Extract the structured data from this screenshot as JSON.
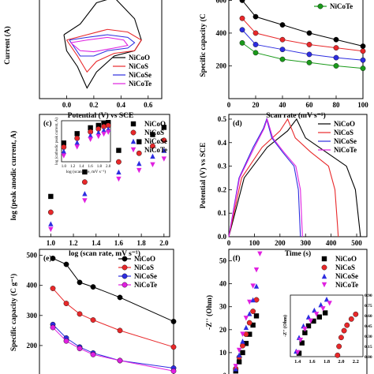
{
  "colors": {
    "NiCoO": "#000000",
    "NiCoS": "#e8282a",
    "NiCoSe": "#2d2de0",
    "NiCoTe": "#e020e0",
    "NiCoTe_b": "#1a9a1a"
  },
  "chart_data": [
    {
      "id": "a",
      "type": "line",
      "panel_label": "",
      "xlabel": "Potential (V) vs SCE",
      "ylabel": "Current (A)",
      "xlim": [
        -0.2,
        0.7
      ],
      "ylim": [
        -0.1,
        0.1
      ],
      "x_ticks": [
        "0.0",
        "0.2",
        "0.4",
        "0.6"
      ],
      "legend": [
        "NiCoO",
        "NiCoS",
        "NiCoSe",
        "NiCoTe"
      ],
      "series": [
        {
          "name": "NiCoO",
          "loop": [
            [
              -0.02,
              0.02
            ],
            [
              0.1,
              0.04
            ],
            [
              0.22,
              0.08
            ],
            [
              0.35,
              0.09
            ],
            [
              0.5,
              0.05
            ],
            [
              0.55,
              0.01
            ],
            [
              0.5,
              -0.01
            ],
            [
              0.35,
              -0.02
            ],
            [
              0.22,
              -0.05
            ],
            [
              0.15,
              -0.08
            ],
            [
              0.08,
              -0.04
            ],
            [
              0.0,
              -0.01
            ],
            [
              -0.02,
              0.02
            ]
          ]
        },
        {
          "name": "NiCoS",
          "loop": [
            [
              0.0,
              0.01
            ],
            [
              0.15,
              0.02
            ],
            [
              0.3,
              0.03
            ],
            [
              0.45,
              0.025
            ],
            [
              0.55,
              0.01
            ],
            [
              0.5,
              -0.01
            ],
            [
              0.35,
              -0.015
            ],
            [
              0.22,
              -0.03
            ],
            [
              0.15,
              -0.05
            ],
            [
              0.08,
              -0.02
            ],
            [
              0.0,
              0.01
            ]
          ]
        },
        {
          "name": "NiCoSe",
          "loop": [
            [
              0.02,
              0.01
            ],
            [
              0.15,
              0.015
            ],
            [
              0.3,
              0.02
            ],
            [
              0.45,
              0.015
            ],
            [
              0.5,
              0.005
            ],
            [
              0.45,
              -0.005
            ],
            [
              0.3,
              -0.01
            ],
            [
              0.2,
              -0.02
            ],
            [
              0.1,
              -0.02
            ],
            [
              0.02,
              0.01
            ]
          ]
        },
        {
          "name": "NiCoTe",
          "loop": [
            [
              0.03,
              0.005
            ],
            [
              0.15,
              0.01
            ],
            [
              0.3,
              0.015
            ],
            [
              0.42,
              0.01
            ],
            [
              0.45,
              0.0
            ],
            [
              0.35,
              -0.005
            ],
            [
              0.2,
              -0.012
            ],
            [
              0.1,
              -0.01
            ],
            [
              0.03,
              0.005
            ]
          ]
        }
      ]
    },
    {
      "id": "b",
      "type": "line",
      "panel_label": "",
      "xlabel": "Scan rate (mV s⁻¹)",
      "ylabel": "Specific capacity (C",
      "xlim": [
        0,
        100
      ],
      "ylim": [
        0,
        650
      ],
      "x_ticks": [
        "0",
        "20",
        "40",
        "60",
        "80",
        "100"
      ],
      "y_ticks": [
        "200",
        "400",
        "600"
      ],
      "legend": [
        "NiCoTe"
      ],
      "x": [
        10,
        20,
        40,
        60,
        80,
        100
      ],
      "series": [
        {
          "name": "",
          "color_key": "NiCoO",
          "values": [
            600,
            500,
            450,
            400,
            360,
            320
          ]
        },
        {
          "name": "",
          "color_key": "NiCoS",
          "values": [
            490,
            400,
            360,
            330,
            310,
            290
          ]
        },
        {
          "name": "",
          "color_key": "NiCoSe",
          "values": [
            420,
            330,
            300,
            270,
            250,
            235
          ]
        },
        {
          "name": "NiCoTe",
          "color_key": "NiCoTe_b",
          "values": [
            340,
            280,
            240,
            220,
            200,
            185
          ]
        }
      ]
    },
    {
      "id": "c",
      "type": "scatter",
      "panel_label": "(c)",
      "xlabel": "log (scan rate, mV s⁻¹)",
      "ylabel": "log (peak anodic current, A)",
      "xlim": [
        0.9,
        2.05
      ],
      "ylim": [
        -1.6,
        -0.75
      ],
      "x_ticks": [
        "1.0",
        "1.2",
        "1.4",
        "1.6",
        "1.8",
        "2.0"
      ],
      "legend": [
        "NiCoO",
        "NiCoS",
        "NiCoSe",
        "NiCoTe"
      ],
      "x": [
        1.0,
        1.3,
        1.6,
        1.78,
        1.9,
        2.0
      ],
      "series": [
        {
          "name": "NiCoO",
          "values": [
            -1.32,
            -1.15,
            -1.0,
            -0.94,
            -0.89,
            -0.84
          ]
        },
        {
          "name": "NiCoS",
          "values": [
            -1.43,
            -1.22,
            -1.08,
            -1.02,
            -0.97,
            -0.93
          ]
        },
        {
          "name": "NiCoSe",
          "values": [
            -1.51,
            -1.3,
            -1.15,
            -1.09,
            -1.04,
            -1.0
          ]
        },
        {
          "name": "NiCoTe",
          "values": [
            -1.55,
            -1.35,
            -1.2,
            -1.14,
            -1.1,
            -1.06
          ]
        }
      ],
      "inset": {
        "xlabel": "log (scan rate, mV s⁻¹)",
        "ylabel": "log (cathodic peak current, A)",
        "x_ticks": [
          "1.0",
          "1.2",
          "1.4",
          "1.6",
          "1.8",
          "2.0"
        ],
        "xlim": [
          0.95,
          2.05
        ],
        "ylim": [
          -1.6,
          -0.9
        ],
        "x": [
          1.0,
          1.3,
          1.6,
          1.78,
          1.9,
          2.0
        ],
        "series": [
          {
            "name": "NiCoO",
            "values": [
              -1.28,
              -1.12,
              -1.02,
              -0.98,
              -0.95,
              -0.93
            ]
          },
          {
            "name": "NiCoS",
            "values": [
              -1.35,
              -1.2,
              -1.09,
              -1.04,
              -1.0,
              -0.98
            ]
          },
          {
            "name": "NiCoSe",
            "values": [
              -1.42,
              -1.27,
              -1.15,
              -1.1,
              -1.06,
              -1.04
            ]
          },
          {
            "name": "NiCoTe",
            "values": [
              -1.5,
              -1.35,
              -1.22,
              -1.17,
              -1.13,
              -1.1
            ]
          }
        ]
      }
    },
    {
      "id": "d",
      "type": "line",
      "panel_label": "(d)",
      "xlabel": "Time (s)",
      "ylabel": "Potential (V) vs SCE",
      "xlim": [
        0,
        540
      ],
      "ylim": [
        0,
        0.52
      ],
      "x_ticks": [
        "0",
        "100",
        "200",
        "300",
        "400",
        "500"
      ],
      "y_ticks": [
        "0.0",
        "0.1",
        "0.2",
        "0.3",
        "0.4",
        "0.5"
      ],
      "legend": [
        "NiCoO",
        "NiCoS",
        "NiCoSe",
        "NiCoTe"
      ],
      "series": [
        {
          "name": "NiCoO",
          "points": [
            [
              0,
              0
            ],
            [
              60,
              0.25
            ],
            [
              150,
              0.38
            ],
            [
              230,
              0.45
            ],
            [
              265,
              0.5
            ],
            [
              300,
              0.42
            ],
            [
              380,
              0.36
            ],
            [
              460,
              0.3
            ],
            [
              495,
              0.2
            ],
            [
              510,
              0.05
            ],
            [
              515,
              0
            ]
          ]
        },
        {
          "name": "NiCoS",
          "points": [
            [
              0,
              0
            ],
            [
              50,
              0.25
            ],
            [
              130,
              0.38
            ],
            [
              200,
              0.45
            ],
            [
              230,
              0.5
            ],
            [
              260,
              0.42
            ],
            [
              320,
              0.36
            ],
            [
              390,
              0.3
            ],
            [
              415,
              0.2
            ],
            [
              425,
              0.05
            ],
            [
              428,
              0
            ]
          ]
        },
        {
          "name": "NiCoSe",
          "points": [
            [
              0,
              0
            ],
            [
              40,
              0.25
            ],
            [
              95,
              0.38
            ],
            [
              135,
              0.46
            ],
            [
              148,
              0.5
            ],
            [
              168,
              0.42
            ],
            [
              210,
              0.36
            ],
            [
              255,
              0.3
            ],
            [
              272,
              0.2
            ],
            [
              278,
              0.05
            ],
            [
              280,
              0
            ]
          ]
        },
        {
          "name": "NiCoTe",
          "points": [
            [
              0,
              0
            ],
            [
              42,
              0.25
            ],
            [
              100,
              0.38
            ],
            [
              138,
              0.46
            ],
            [
              150,
              0.5
            ],
            [
              172,
              0.42
            ],
            [
              215,
              0.36
            ],
            [
              262,
              0.3
            ],
            [
              280,
              0.2
            ],
            [
              286,
              0.05
            ],
            [
              288,
              0
            ]
          ]
        }
      ]
    },
    {
      "id": "e",
      "type": "line",
      "panel_label": "(e)",
      "xlabel": "",
      "ylabel": "Specific capacity (C g⁻¹)",
      "xlim": [
        0,
        100
      ],
      "ylim": [
        100,
        520
      ],
      "y_ticks": [
        "200",
        "300",
        "400",
        "500"
      ],
      "legend": [
        "NiCoO",
        "NiCoS",
        "NiCoSe",
        "NiCoTe"
      ],
      "x": [
        10,
        20,
        30,
        40,
        60,
        100
      ],
      "series": [
        {
          "name": "NiCoO",
          "values": [
            490,
            470,
            410,
            395,
            360,
            280
          ]
        },
        {
          "name": "NiCoS",
          "values": [
            390,
            340,
            305,
            285,
            250,
            195
          ]
        },
        {
          "name": "NiCoSe",
          "values": [
            270,
            225,
            195,
            175,
            150,
            125
          ]
        },
        {
          "name": "NiCoTe",
          "values": [
            260,
            215,
            190,
            170,
            150,
            115
          ]
        }
      ]
    },
    {
      "id": "f",
      "type": "scatter",
      "panel_label": "(f)",
      "xlabel": "",
      "ylabel": "-Z'' (Ohm)",
      "xlim": [
        0,
        40
      ],
      "ylim": [
        0,
        55
      ],
      "y_ticks": [
        "0",
        "10",
        "20",
        "30",
        "40",
        "50"
      ],
      "legend": [
        "NiCoO",
        "NiCoS",
        "NiCoSe",
        "NiCoTe"
      ],
      "series": [
        {
          "name": "NiCoO",
          "points": [
            [
              2,
              2
            ],
            [
              3,
              6
            ],
            [
              4,
              10
            ],
            [
              5,
              14
            ],
            [
              6,
              18
            ],
            [
              7,
              22
            ],
            [
              8,
              26
            ]
          ]
        },
        {
          "name": "NiCoS",
          "points": [
            [
              2,
              3
            ],
            [
              3,
              8
            ],
            [
              4,
              13
            ],
            [
              5,
              18
            ],
            [
              6,
              23
            ],
            [
              7,
              28
            ],
            [
              8,
              33
            ]
          ]
        },
        {
          "name": "NiCoSe",
          "points": [
            [
              2,
              3
            ],
            [
              3,
              9
            ],
            [
              4,
              15
            ],
            [
              5,
              21
            ],
            [
              6,
              27
            ],
            [
              7,
              33
            ],
            [
              8,
              39
            ]
          ]
        },
        {
          "name": "NiCoTe",
          "points": [
            [
              2,
              4
            ],
            [
              3,
              11
            ],
            [
              4,
              18
            ],
            [
              5,
              25
            ],
            [
              6,
              32
            ],
            [
              7,
              39
            ],
            [
              8,
              46
            ],
            [
              9,
              53
            ]
          ]
        }
      ],
      "inset": {
        "ylabel": "-Z'' (Ohm)",
        "x_ticks": [
          "1.4",
          "1.6",
          "1.8",
          "2.0",
          "2.2"
        ],
        "y_ticks": [
          "0.00",
          "0.15",
          "0.30",
          "0.45",
          "0.60",
          "0.75",
          "0.90"
        ],
        "xlim": [
          1.3,
          2.3
        ],
        "ylim": [
          0,
          0.9
        ],
        "series": [
          {
            "name": "NiCoO",
            "points": [
              [
                1.42,
                0.05
              ],
              [
                1.46,
                0.2
              ],
              [
                1.5,
                0.35
              ],
              [
                1.55,
                0.45
              ],
              [
                1.62,
                0.52
              ],
              [
                1.7,
                0.58
              ],
              [
                1.78,
                0.64
              ]
            ]
          },
          {
            "name": "NiCoS",
            "points": [
              [
                1.95,
                0.02
              ],
              [
                1.97,
                0.15
              ],
              [
                2.0,
                0.28
              ],
              [
                2.04,
                0.38
              ],
              [
                2.08,
                0.46
              ],
              [
                2.14,
                0.55
              ],
              [
                2.2,
                0.62
              ]
            ]
          },
          {
            "name": "NiCoSe",
            "points": [
              [
                1.38,
                0.08
              ],
              [
                1.42,
                0.28
              ],
              [
                1.48,
                0.45
              ],
              [
                1.55,
                0.58
              ],
              [
                1.63,
                0.68
              ],
              [
                1.72,
                0.76
              ],
              [
                1.8,
                0.84
              ]
            ]
          },
          {
            "name": "NiCoTe",
            "points": [
              [
                1.4,
                0.06
              ],
              [
                1.44,
                0.24
              ],
              [
                1.5,
                0.4
              ],
              [
                1.58,
                0.52
              ],
              [
                1.66,
                0.62
              ],
              [
                1.75,
                0.7
              ],
              [
                1.84,
                0.78
              ]
            ]
          }
        ]
      }
    }
  ]
}
